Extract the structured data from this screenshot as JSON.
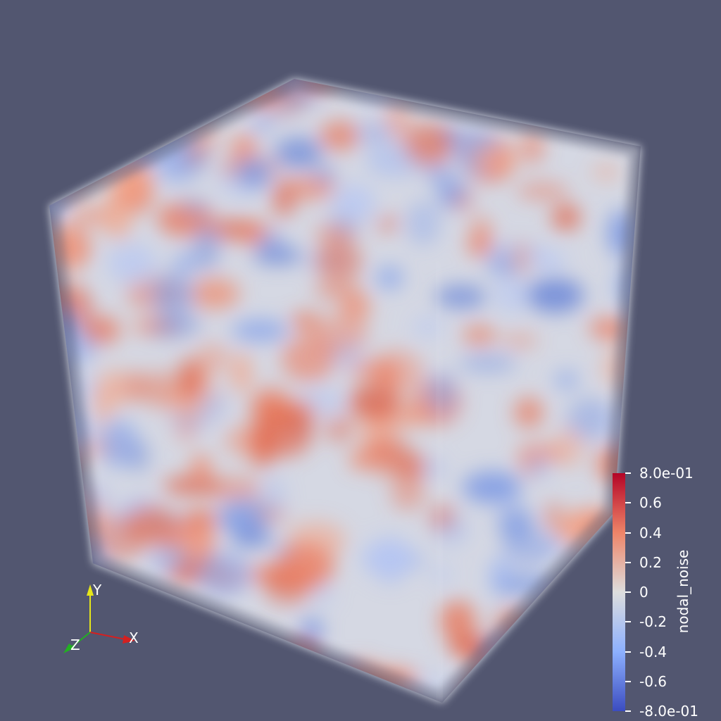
{
  "scene": {
    "background": "#525670",
    "object": "volume-rendered-cube"
  },
  "colormap": {
    "name": "Cool to Warm",
    "low": "#3b4cc0",
    "mid": "#dddddd",
    "high": "#b40426"
  },
  "legend": {
    "title": "nodal_noise",
    "range": [
      -0.8,
      0.8
    ],
    "ticks": [
      {
        "value": 0.8,
        "label": "8.0e-01"
      },
      {
        "value": 0.6,
        "label": "0.6"
      },
      {
        "value": 0.4,
        "label": "0.4"
      },
      {
        "value": 0.2,
        "label": "0.2"
      },
      {
        "value": 0.0,
        "label": "0"
      },
      {
        "value": -0.2,
        "label": "-0.2"
      },
      {
        "value": -0.4,
        "label": "-0.4"
      },
      {
        "value": -0.6,
        "label": "-0.6"
      },
      {
        "value": -0.8,
        "label": "-8.0e-01"
      }
    ]
  },
  "orientation_axes": {
    "x": {
      "label": "X",
      "color": "#d42020"
    },
    "y": {
      "label": "Y",
      "color": "#e6e61a"
    },
    "z": {
      "label": "Z",
      "color": "#22b022"
    }
  }
}
